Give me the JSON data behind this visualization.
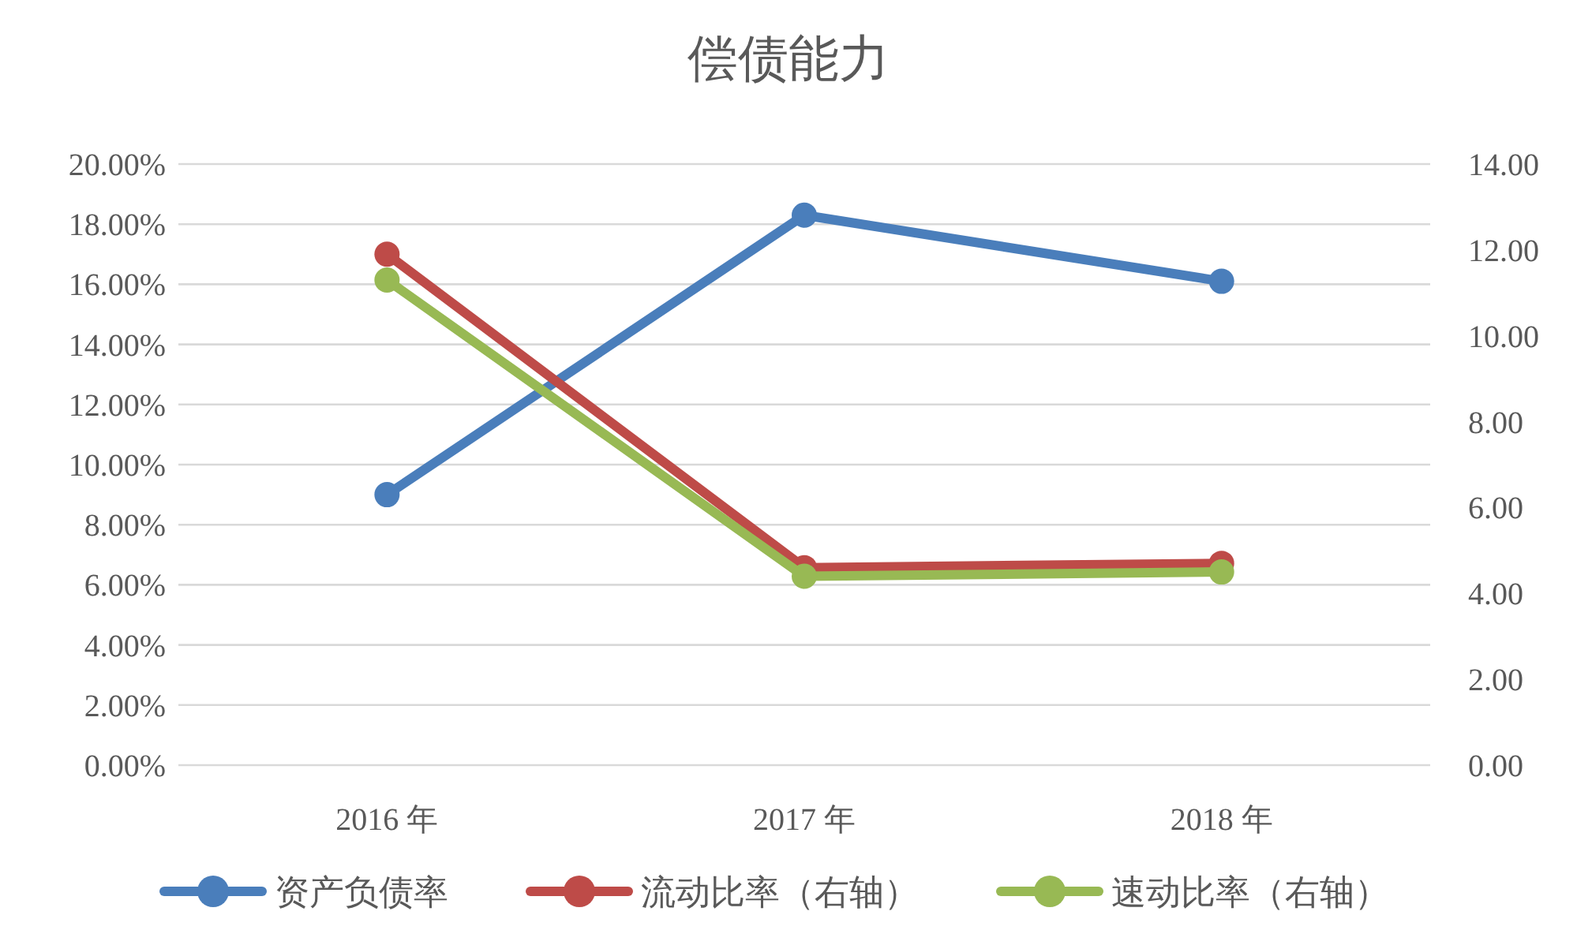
{
  "chart_data": {
    "type": "line",
    "title": "偿债能力",
    "categories": [
      "2016 年",
      "2017 年",
      "2018 年"
    ],
    "series": [
      {
        "name": "资产负债率",
        "color": "#4a7ebb",
        "values": [
          9.0,
          18.3,
          16.1
        ]
      },
      {
        "name": "流动比率（右轴）",
        "color": "#be4b48",
        "values": [
          11.9,
          4.6,
          4.7
        ],
        "axis": "y2"
      },
      {
        "name": "速动比率（右轴）",
        "color": "#98b954",
        "values": [
          11.3,
          4.4,
          4.5
        ],
        "axis": "y2"
      }
    ],
    "ylim": [
      0,
      20
    ],
    "yticks": [
      {
        "value": 0,
        "label": "0.00%"
      },
      {
        "value": 2,
        "label": "2.00%"
      },
      {
        "value": 4,
        "label": "4.00%"
      },
      {
        "value": 6,
        "label": "6.00%"
      },
      {
        "value": 8,
        "label": "8.00%"
      },
      {
        "value": 10,
        "label": "10.00%"
      },
      {
        "value": 12,
        "label": "12.00%"
      },
      {
        "value": 14,
        "label": "14.00%"
      },
      {
        "value": 16,
        "label": "16.00%"
      },
      {
        "value": 18,
        "label": "18.00%"
      },
      {
        "value": 20,
        "label": "20.00%"
      }
    ],
    "y2lim": [
      0,
      14
    ],
    "y2ticks": [
      {
        "value": 0,
        "label": "0.00"
      },
      {
        "value": 2,
        "label": "2.00"
      },
      {
        "value": 4,
        "label": "4.00"
      },
      {
        "value": 6,
        "label": "6.00"
      },
      {
        "value": 8,
        "label": "8.00"
      },
      {
        "value": 10,
        "label": "10.00"
      },
      {
        "value": 12,
        "label": "12.00"
      },
      {
        "value": 14,
        "label": "14.00"
      }
    ],
    "grid": "y",
    "legend": "bottom",
    "marker": "circle",
    "line_style": "solid"
  }
}
